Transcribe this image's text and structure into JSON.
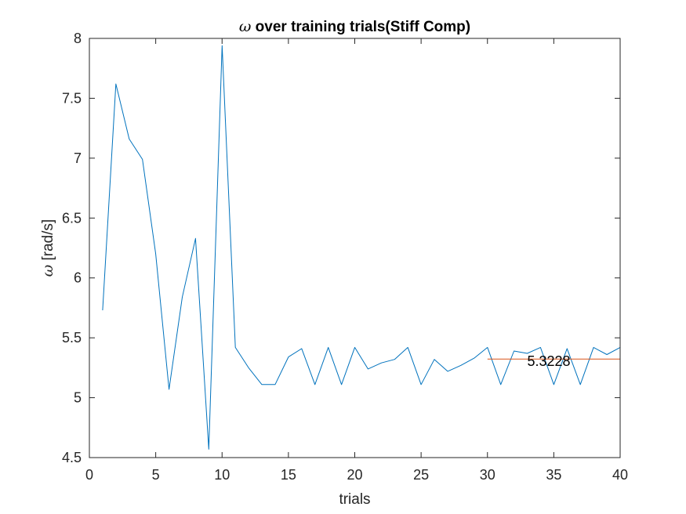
{
  "chart_data": {
    "type": "line",
    "title_symbol": "ω",
    "title_rest": " over training trials(Stiff Comp)",
    "xlabel": "trials",
    "ylabel_symbol": "ω",
    "ylabel_rest": " [rad/s]",
    "xlim": [
      0,
      40
    ],
    "ylim": [
      4.5,
      8
    ],
    "xticks": [
      0,
      5,
      10,
      15,
      20,
      25,
      30,
      35,
      40
    ],
    "yticks": [
      4.5,
      5,
      5.5,
      6,
      6.5,
      7,
      7.5,
      8
    ],
    "ytick_labels": [
      "4.5",
      "5",
      "5.5",
      "6",
      "6.5",
      "7",
      "7.5",
      "8"
    ],
    "grid": false,
    "series": [
      {
        "color": "#0072BD",
        "x": [
          1,
          2,
          3,
          4,
          5,
          6,
          7,
          8,
          9,
          10,
          11,
          12,
          13,
          14,
          15,
          16,
          17,
          18,
          19,
          20,
          21,
          22,
          23,
          24,
          25,
          26,
          27,
          28,
          29,
          30,
          31,
          32,
          33,
          34,
          35,
          36,
          37,
          38,
          39,
          40
        ],
        "y": [
          5.73,
          7.62,
          7.16,
          6.99,
          6.2,
          5.07,
          5.84,
          6.33,
          4.57,
          7.94,
          5.42,
          5.25,
          5.11,
          5.11,
          5.34,
          5.41,
          5.11,
          5.42,
          5.11,
          5.42,
          5.24,
          5.29,
          5.32,
          5.42,
          5.11,
          5.32,
          5.22,
          5.27,
          5.33,
          5.42,
          5.11,
          5.39,
          5.37,
          5.42,
          5.11,
          5.41,
          5.11,
          5.42,
          5.36,
          5.42
        ]
      },
      {
        "color": "#D95319",
        "x": [
          30,
          40
        ],
        "y": [
          5.3228,
          5.3228
        ]
      }
    ],
    "annotations": [
      {
        "text": "5.3228",
        "x": 33.0,
        "y": 5.3228
      }
    ]
  }
}
